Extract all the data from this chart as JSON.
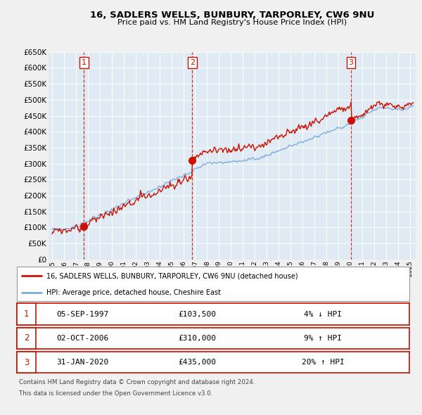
{
  "title": "16, SADLERS WELLS, BUNBURY, TARPORLEY, CW6 9NU",
  "subtitle": "Price paid vs. HM Land Registry's House Price Index (HPI)",
  "legend_line1": "16, SADLERS WELLS, BUNBURY, TARPORLEY, CW6 9NU (detached house)",
  "legend_line2": "HPI: Average price, detached house, Cheshire East",
  "transactions": [
    {
      "num": 1,
      "date": "05-SEP-1997",
      "price": 103500,
      "pct": "4%",
      "dir": "↓",
      "year": 1997.67
    },
    {
      "num": 2,
      "date": "02-OCT-2006",
      "price": 310000,
      "pct": "9%",
      "dir": "↑",
      "year": 2006.75
    },
    {
      "num": 3,
      "date": "31-JAN-2020",
      "price": 435000,
      "pct": "20%",
      "dir": "↑",
      "year": 2020.08
    }
  ],
  "footnote1": "Contains HM Land Registry data © Crown copyright and database right 2024.",
  "footnote2": "This data is licensed under the Open Government Licence v3.0.",
  "hpi_color": "#7aabdc",
  "price_color": "#cc1100",
  "vline_color": "#cc1100",
  "background_color": "#f0f0f0",
  "plot_bg_color": "#e0eaf4",
  "grid_color": "#ffffff",
  "ylim": [
    0,
    650000
  ],
  "yticks": [
    0,
    50000,
    100000,
    150000,
    200000,
    250000,
    300000,
    350000,
    400000,
    450000,
    500000,
    550000,
    600000,
    650000
  ],
  "xlim_start": 1994.7,
  "xlim_end": 2025.5,
  "xtick_years": [
    1995,
    1996,
    1997,
    1998,
    1999,
    2000,
    2001,
    2002,
    2003,
    2004,
    2005,
    2006,
    2007,
    2008,
    2009,
    2010,
    2011,
    2012,
    2013,
    2014,
    2015,
    2016,
    2017,
    2018,
    2019,
    2020,
    2021,
    2022,
    2023,
    2024,
    2025
  ]
}
